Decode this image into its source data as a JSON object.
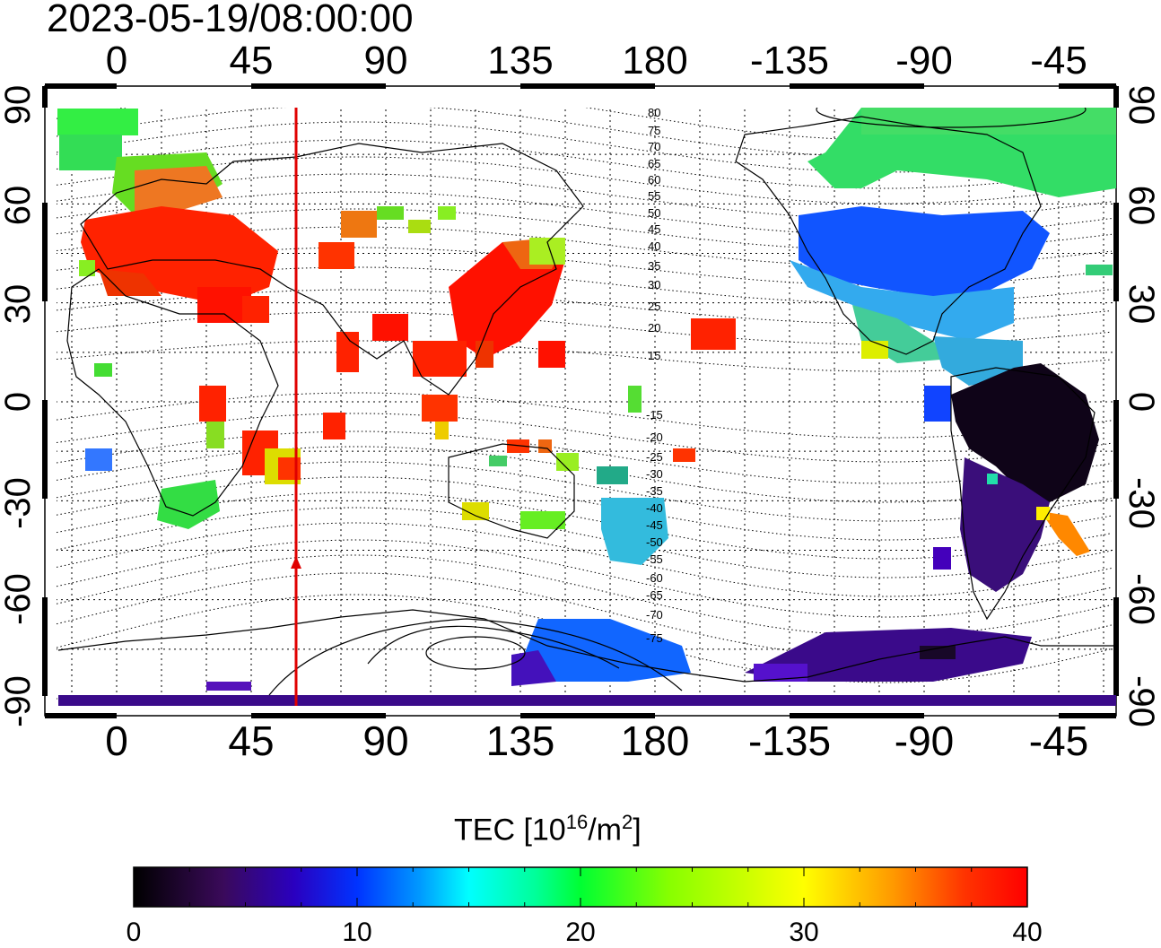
{
  "map": {
    "timestamp": "2023-05-19/08:00:00",
    "lon_ticks_top": [
      "0",
      "45",
      "90",
      "135",
      "180",
      "-135",
      "-90",
      "-45"
    ],
    "lon_ticks_bottom": [
      "0",
      "45",
      "90",
      "135",
      "180",
      "-135",
      "-90",
      "-45"
    ],
    "lat_ticks_left": [
      "90",
      "60",
      "30",
      "0",
      "-30",
      "-60",
      "-90"
    ],
    "lat_ticks_right": [
      "90",
      "60",
      "30",
      "0",
      "-30",
      "-60",
      "-90"
    ],
    "marker_longitude": 60,
    "marker_color": "#e00000",
    "magnetic_lat_labels_north": [
      "80",
      "75",
      "70",
      "65",
      "60",
      "55",
      "50",
      "45",
      "40",
      "35",
      "30",
      "25",
      "20",
      "15"
    ],
    "magnetic_lat_labels_south": [
      "-15",
      "-20",
      "-25",
      "-30",
      "-35",
      "-40",
      "-45",
      "-50",
      "-55",
      "-60",
      "-65",
      "-70",
      "-75"
    ]
  },
  "colorbar": {
    "label_prefix": "TEC  [10",
    "label_exp": "16",
    "label_mid": "/m",
    "label_exp2": "2",
    "label_suffix": "]",
    "min": 0,
    "max": 40,
    "ticks": [
      "0",
      "10",
      "20",
      "30",
      "40"
    ],
    "colors": [
      "#000000",
      "#3a0a5a",
      "#2a00c0",
      "#0033ff",
      "#0099ff",
      "#00ffff",
      "#00ff66",
      "#33ff00",
      "#aaff00",
      "#ffff00",
      "#ffaa00",
      "#ff5500",
      "#ff0000"
    ]
  }
}
